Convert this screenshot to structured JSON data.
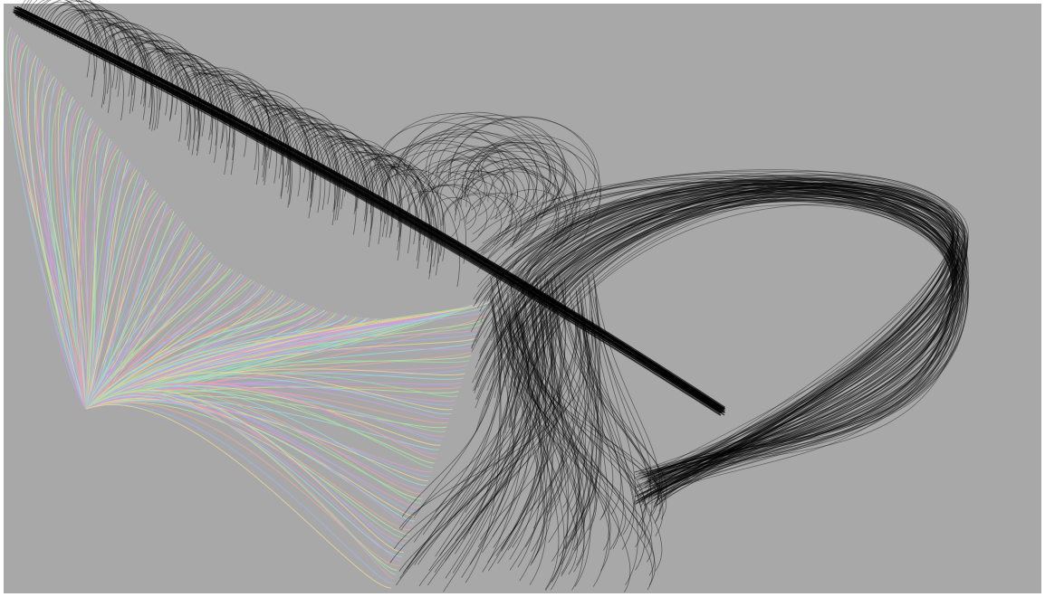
{
  "canvas": {
    "background_color": "#a8a8a8",
    "border_color": "#ffffff"
  },
  "palette": {
    "dark_stroke": "#000000",
    "curve_colors": [
      "#9fd8a6",
      "#d8a0c8",
      "#a0b4e8",
      "#e8d49a",
      "#9ad8d8",
      "#c8a0e0",
      "#e8a8a0",
      "#b8e0a0"
    ]
  }
}
